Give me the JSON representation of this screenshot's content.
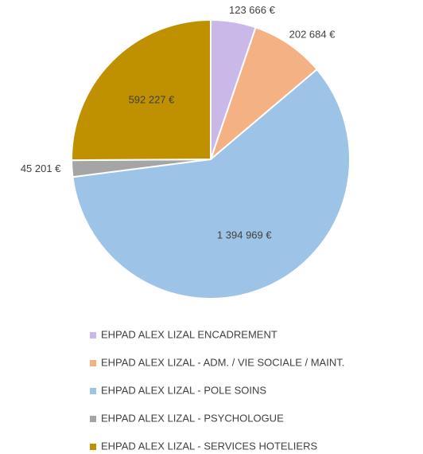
{
  "chart_data": {
    "type": "pie",
    "categories": [
      "EHPAD ALEX LIZAL ENCADREMENT",
      "EHPAD ALEX LIZAL - ADM. / VIE SOCIALE / MAINT.",
      "EHPAD ALEX LIZAL - POLE SOINS",
      "EHPAD ALEX LIZAL - PSYCHOLOGUE",
      "EHPAD ALEX LIZAL - SERVICES HOTELIERS"
    ],
    "values": [
      123666,
      202684,
      1394969,
      45201,
      592227
    ],
    "value_labels": [
      "123 666 €",
      "202 684 €",
      "1 394 969 €",
      "45 201 €",
      "592 227 €"
    ],
    "colors": [
      "#c9b8e8",
      "#f4b183",
      "#9dc3e6",
      "#a5a5a5",
      "#bf9000"
    ]
  }
}
